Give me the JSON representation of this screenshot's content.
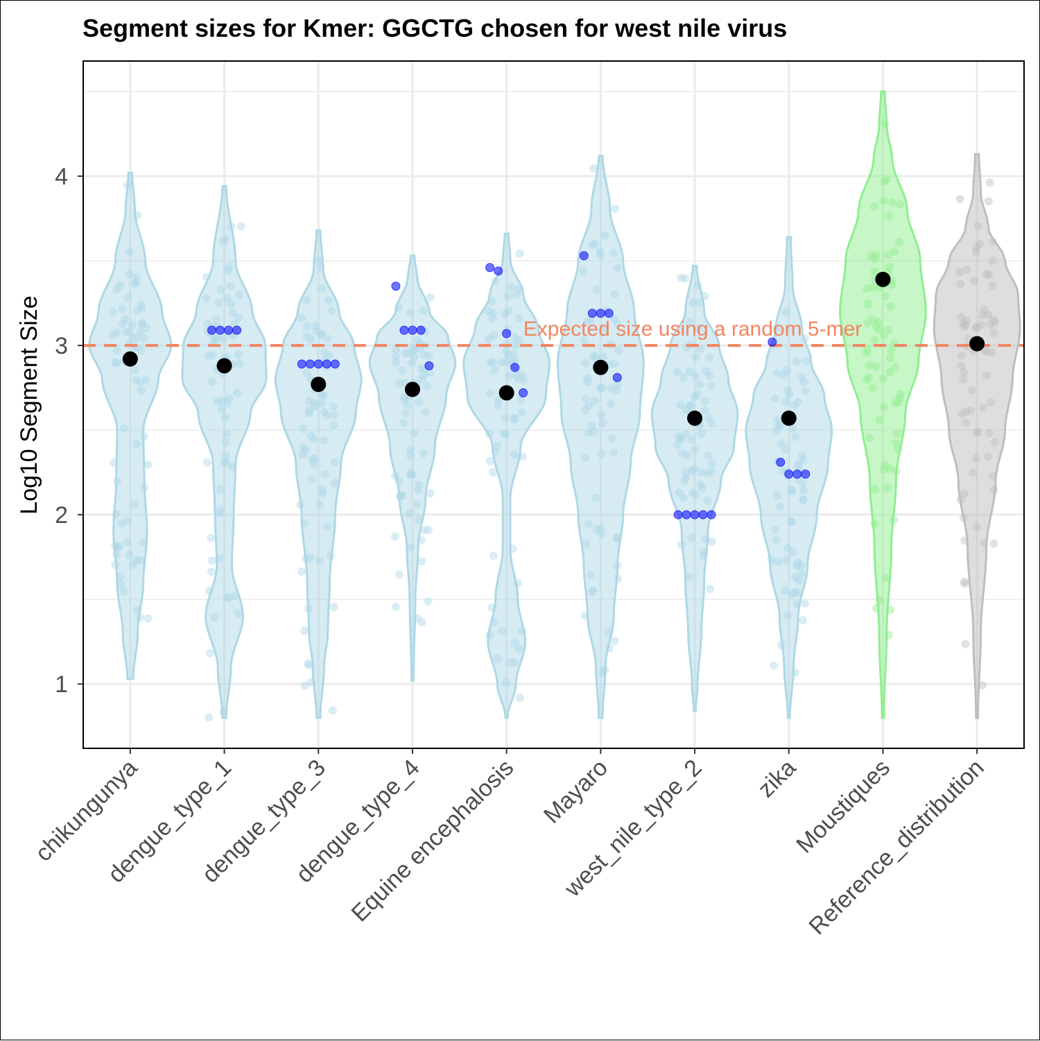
{
  "chart_data": {
    "type": "violin",
    "title": "Segment sizes for Kmer: GGCTG chosen for west nile virus",
    "xlabel": "",
    "ylabel": "Log10 Segment Size",
    "ylim": [
      0.62,
      4.68
    ],
    "yticks": [
      1,
      2,
      3,
      4
    ],
    "grid": true,
    "categories": [
      "chikungunya",
      "dengue_type_1",
      "dengue_type_3",
      "dengue_type_4",
      "Equine encephalosis",
      "Mayaro",
      "west_nile_type_2",
      "zika",
      "Moustiques",
      "Reference_distribution"
    ],
    "colors": {
      "virus_fill": "#add8e6",
      "moustiques_fill": "#90ee90",
      "reference_fill": "#bebebe",
      "highlight_point": "#0000ff",
      "mean_point": "#000000",
      "reference_line": "#f4845f"
    },
    "reference_line": {
      "y": 3.0,
      "label": "Expected size using a random 5-mer"
    },
    "means": [
      2.92,
      2.88,
      2.77,
      2.74,
      2.72,
      2.87,
      2.57,
      2.57,
      3.39,
      3.01
    ],
    "violins": [
      {
        "category": "chikungunya",
        "ymin": 1.03,
        "ymax": 4.02,
        "density": [
          [
            1.03,
            0.03
          ],
          [
            1.3,
            0.08
          ],
          [
            1.6,
            0.14
          ],
          [
            1.9,
            0.18
          ],
          [
            2.2,
            0.15
          ],
          [
            2.5,
            0.14
          ],
          [
            2.8,
            0.3
          ],
          [
            3.0,
            0.44
          ],
          [
            3.2,
            0.34
          ],
          [
            3.5,
            0.16
          ],
          [
            3.8,
            0.05
          ],
          [
            4.02,
            0.02
          ]
        ],
        "highlighted": []
      },
      {
        "category": "dengue_type_1",
        "ymin": 0.8,
        "ymax": 3.94,
        "density": [
          [
            0.8,
            0.02
          ],
          [
            1.1,
            0.07
          ],
          [
            1.4,
            0.2
          ],
          [
            1.7,
            0.08
          ],
          [
            2.0,
            0.1
          ],
          [
            2.3,
            0.12
          ],
          [
            2.6,
            0.28
          ],
          [
            2.8,
            0.45
          ],
          [
            3.0,
            0.44
          ],
          [
            3.2,
            0.3
          ],
          [
            3.5,
            0.12
          ],
          [
            3.94,
            0.02
          ]
        ],
        "highlighted": [
          3.09,
          3.09,
          3.09,
          3.09
        ]
      },
      {
        "category": "dengue_type_3",
        "ymin": 0.8,
        "ymax": 3.68,
        "density": [
          [
            0.8,
            0.02
          ],
          [
            1.1,
            0.06
          ],
          [
            1.3,
            0.1
          ],
          [
            1.6,
            0.12
          ],
          [
            2.0,
            0.18
          ],
          [
            2.3,
            0.24
          ],
          [
            2.6,
            0.4
          ],
          [
            2.8,
            0.46
          ],
          [
            3.0,
            0.38
          ],
          [
            3.2,
            0.22
          ],
          [
            3.45,
            0.05
          ],
          [
            3.68,
            0.02
          ]
        ],
        "highlighted": [
          2.89,
          2.89,
          2.89,
          2.89,
          2.89
        ]
      },
      {
        "category": "dengue_type_4",
        "ymin": 1.02,
        "ymax": 3.53,
        "density": [
          [
            1.02,
            0.01
          ],
          [
            1.5,
            0.03
          ],
          [
            1.8,
            0.06
          ],
          [
            2.1,
            0.14
          ],
          [
            2.4,
            0.24
          ],
          [
            2.7,
            0.36
          ],
          [
            2.9,
            0.46
          ],
          [
            3.05,
            0.38
          ],
          [
            3.2,
            0.18
          ],
          [
            3.4,
            0.05
          ],
          [
            3.53,
            0.02
          ]
        ],
        "highlighted": [
          3.35,
          3.09,
          3.09,
          3.09,
          2.88
        ]
      },
      {
        "category": "Equine encephalosis",
        "ymin": 0.8,
        "ymax": 3.66,
        "density": [
          [
            0.8,
            0.01
          ],
          [
            1.0,
            0.1
          ],
          [
            1.25,
            0.2
          ],
          [
            1.5,
            0.12
          ],
          [
            1.8,
            0.04
          ],
          [
            2.1,
            0.04
          ],
          [
            2.4,
            0.15
          ],
          [
            2.7,
            0.42
          ],
          [
            2.9,
            0.46
          ],
          [
            3.1,
            0.34
          ],
          [
            3.3,
            0.18
          ],
          [
            3.5,
            0.04
          ],
          [
            3.66,
            0.02
          ]
        ],
        "highlighted": [
          3.46,
          3.44,
          3.07,
          2.87,
          2.72
        ]
      },
      {
        "category": "Mayaro",
        "ymin": 0.8,
        "ymax": 4.12,
        "density": [
          [
            0.8,
            0.02
          ],
          [
            1.1,
            0.05
          ],
          [
            1.4,
            0.14
          ],
          [
            1.7,
            0.18
          ],
          [
            2.0,
            0.24
          ],
          [
            2.3,
            0.32
          ],
          [
            2.6,
            0.42
          ],
          [
            2.9,
            0.46
          ],
          [
            3.2,
            0.36
          ],
          [
            3.5,
            0.24
          ],
          [
            3.8,
            0.1
          ],
          [
            4.12,
            0.02
          ]
        ],
        "highlighted": [
          3.53,
          3.19,
          3.19,
          3.19,
          2.81
        ]
      },
      {
        "category": "west_nile_type_2",
        "ymin": 0.84,
        "ymax": 3.47,
        "density": [
          [
            0.84,
            0.01
          ],
          [
            1.0,
            0.03
          ],
          [
            1.3,
            0.07
          ],
          [
            1.6,
            0.1
          ],
          [
            1.9,
            0.14
          ],
          [
            2.2,
            0.28
          ],
          [
            2.4,
            0.42
          ],
          [
            2.6,
            0.46
          ],
          [
            2.8,
            0.36
          ],
          [
            3.0,
            0.26
          ],
          [
            3.2,
            0.1
          ],
          [
            3.47,
            0.02
          ]
        ],
        "highlighted": [
          2.0,
          2.0,
          2.0,
          2.0,
          2.0
        ]
      },
      {
        "category": "zika",
        "ymin": 0.8,
        "ymax": 3.64,
        "density": [
          [
            0.8,
            0.01
          ],
          [
            1.1,
            0.05
          ],
          [
            1.4,
            0.1
          ],
          [
            1.7,
            0.2
          ],
          [
            2.0,
            0.3
          ],
          [
            2.3,
            0.42
          ],
          [
            2.5,
            0.46
          ],
          [
            2.7,
            0.38
          ],
          [
            2.9,
            0.24
          ],
          [
            3.1,
            0.14
          ],
          [
            3.35,
            0.04
          ],
          [
            3.64,
            0.02
          ]
        ],
        "highlighted": [
          3.02,
          2.31,
          2.24,
          2.24,
          2.24
        ]
      },
      {
        "category": "Moustiques",
        "ymin": 0.8,
        "ymax": 4.5,
        "density": [
          [
            0.8,
            0.01
          ],
          [
            1.3,
            0.04
          ],
          [
            1.8,
            0.09
          ],
          [
            2.2,
            0.14
          ],
          [
            2.6,
            0.24
          ],
          [
            2.9,
            0.38
          ],
          [
            3.2,
            0.46
          ],
          [
            3.5,
            0.4
          ],
          [
            3.8,
            0.26
          ],
          [
            4.1,
            0.1
          ],
          [
            4.3,
            0.04
          ],
          [
            4.5,
            0.02
          ]
        ],
        "highlighted": []
      },
      {
        "category": "Reference_distribution",
        "ymin": 0.8,
        "ymax": 4.13,
        "density": [
          [
            0.8,
            0.01
          ],
          [
            1.3,
            0.04
          ],
          [
            1.8,
            0.1
          ],
          [
            2.2,
            0.2
          ],
          [
            2.5,
            0.3
          ],
          [
            2.8,
            0.38
          ],
          [
            3.1,
            0.46
          ],
          [
            3.3,
            0.44
          ],
          [
            3.5,
            0.3
          ],
          [
            3.7,
            0.12
          ],
          [
            3.9,
            0.04
          ],
          [
            4.13,
            0.02
          ]
        ],
        "highlighted": []
      }
    ]
  }
}
